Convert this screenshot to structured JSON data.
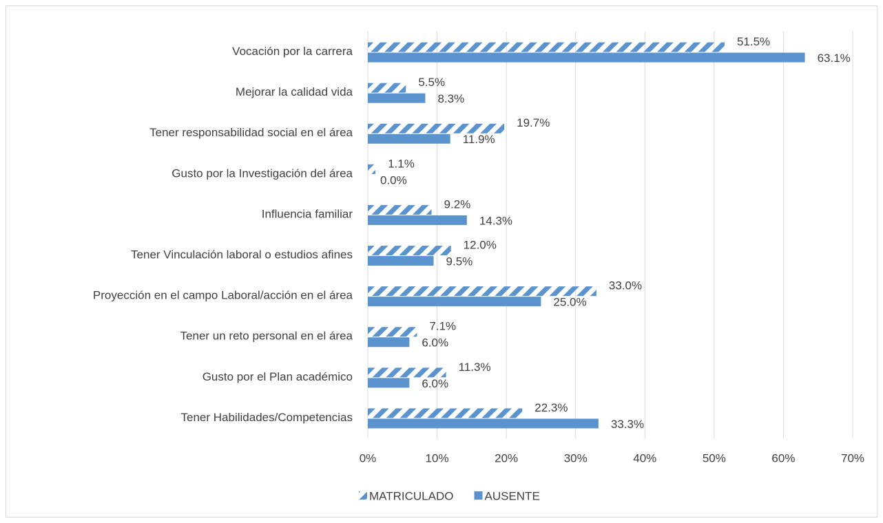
{
  "chart_data": {
    "type": "hbar",
    "categories": [
      "Vocación por la carrera",
      "Mejorar la  calidad vida",
      "Tener responsabilidad social en el área",
      "Gusto por la Investigación del área",
      "Influencia familiar",
      "Tener Vinculación laboral o estudios afines",
      "Proyección en el campo Laboral/acción en el área",
      "Tener un reto personal en el área",
      "Gusto por el Plan académico",
      "Tener Habilidades/Competencias"
    ],
    "series": [
      {
        "name": "MATRICULADO",
        "color": "#5b93cf",
        "pattern": "hatch",
        "values": [
          51.5,
          5.5,
          19.7,
          1.1,
          9.2,
          12.0,
          33.0,
          7.1,
          11.3,
          22.3
        ],
        "value_labels": [
          "51.5%",
          "5.5%",
          "19.7%",
          "1.1%",
          "9.2%",
          "12.0%",
          "33.0%",
          "7.1%",
          "11.3%",
          "22.3%"
        ]
      },
      {
        "name": "AUSENTE",
        "color": "#5b93cf",
        "pattern": "solid",
        "values": [
          63.1,
          8.3,
          11.9,
          0.0,
          14.3,
          9.5,
          25.0,
          6.0,
          6.0,
          33.3
        ],
        "value_labels": [
          "63.1%",
          "8.3%",
          "11.9%",
          "0.0%",
          "14.3%",
          "9.5%",
          "25.0%",
          "6.0%",
          "6.0%",
          "33.3%"
        ]
      }
    ],
    "xlim": [
      0,
      70
    ],
    "xticks": [
      {
        "value": 0,
        "label": "0%"
      },
      {
        "value": 10,
        "label": "10%"
      },
      {
        "value": 20,
        "label": "20%"
      },
      {
        "value": 30,
        "label": "30%"
      },
      {
        "value": 40,
        "label": "40%"
      },
      {
        "value": 50,
        "label": "50%"
      },
      {
        "value": 60,
        "label": "60%"
      },
      {
        "value": 70,
        "label": "70%"
      }
    ],
    "grid": true,
    "legend": "bottom"
  }
}
